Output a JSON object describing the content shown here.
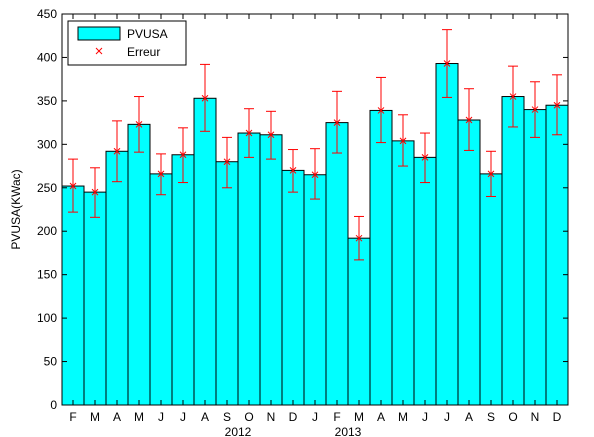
{
  "chart_data": {
    "type": "bar",
    "categories": [
      "F",
      "M",
      "A",
      "M",
      "J",
      "J",
      "A",
      "S",
      "O",
      "N",
      "D",
      "J",
      "F",
      "M",
      "A",
      "M",
      "J",
      "J",
      "A",
      "S",
      "O",
      "N",
      "D"
    ],
    "year_labels": [
      {
        "text": "2012",
        "category_index": 7.5
      },
      {
        "text": "2013",
        "category_index": 12.5
      }
    ],
    "series": [
      {
        "name": "PVUSA",
        "color": "#00ffff",
        "values": [
          252,
          245,
          292,
          323,
          266,
          288,
          353,
          280,
          313,
          311,
          270,
          265,
          325,
          192,
          339,
          304,
          285,
          393,
          328,
          266,
          355,
          340,
          345
        ]
      }
    ],
    "error": {
      "name": "Erreur",
      "color": "#ff0000",
      "lower": [
        222,
        216,
        257,
        291,
        242,
        256,
        315,
        250,
        285,
        283,
        245,
        237,
        290,
        167,
        302,
        275,
        256,
        354,
        293,
        240,
        320,
        308,
        311
      ],
      "upper": [
        283,
        273,
        327,
        355,
        289,
        319,
        392,
        308,
        341,
        338,
        294,
        295,
        361,
        217,
        377,
        334,
        313,
        432,
        364,
        292,
        390,
        372,
        380
      ]
    },
    "title": "",
    "xlabel": "",
    "ylabel": "PVUSA(KWac)",
    "ylim": [
      0,
      450
    ],
    "yticks": [
      0,
      50,
      100,
      150,
      200,
      250,
      300,
      350,
      400,
      450
    ],
    "grid": false,
    "legend": "top-left"
  }
}
